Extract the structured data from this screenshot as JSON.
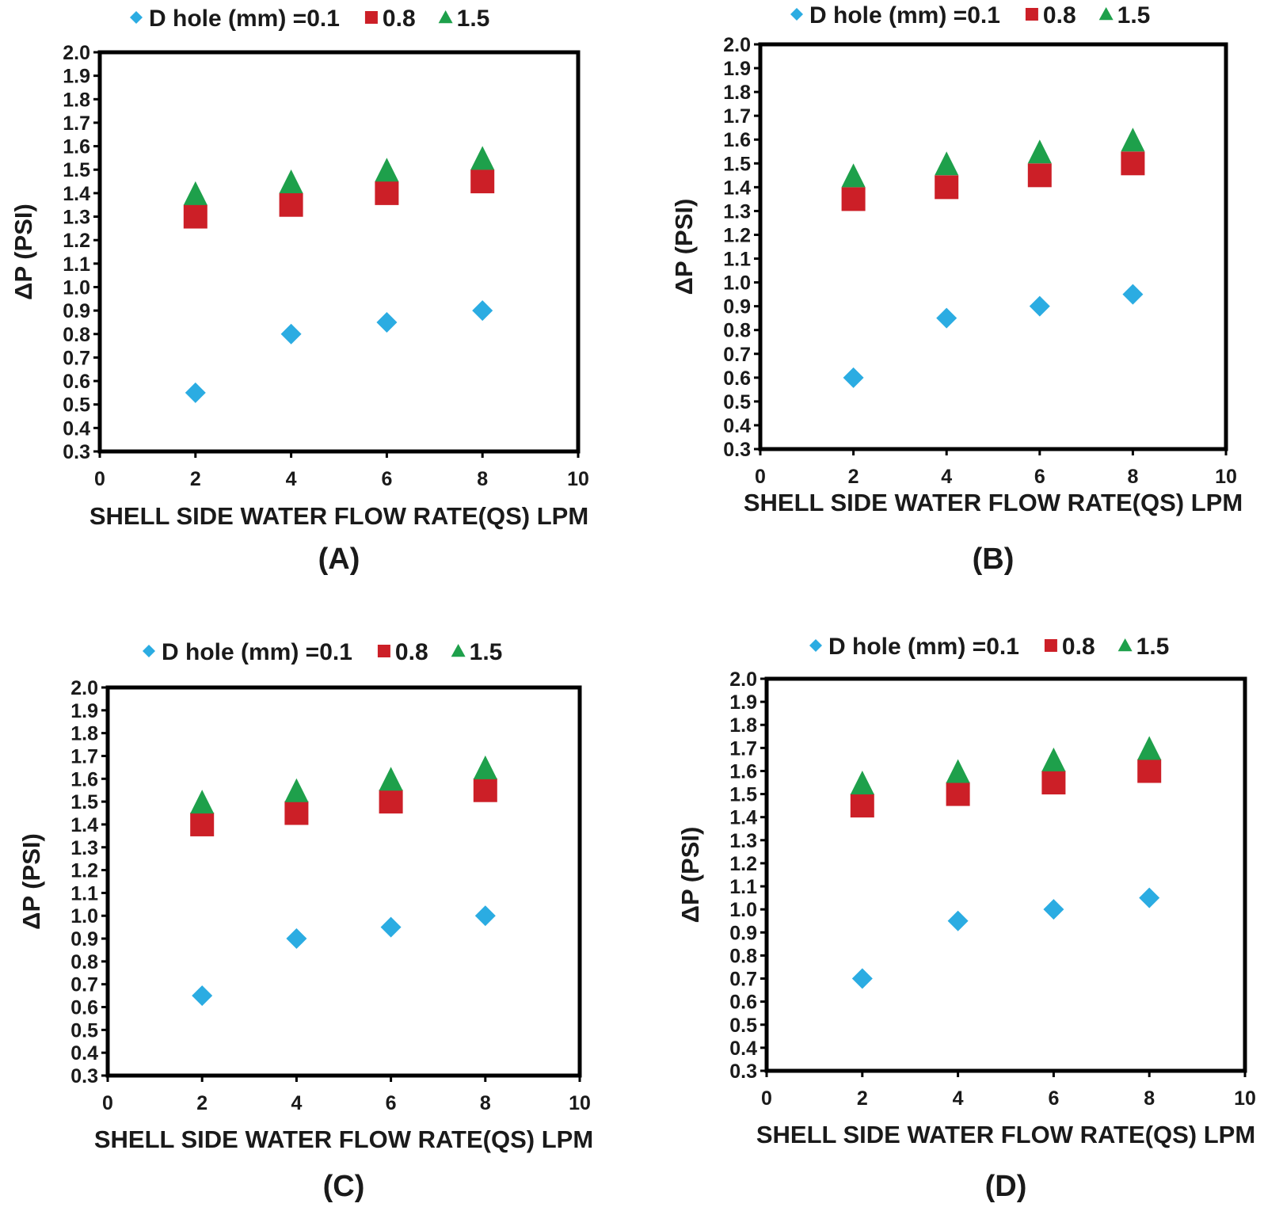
{
  "colors": {
    "d01": "#2bace2",
    "d08": "#cc1f27",
    "d15": "#1ea04b",
    "axis": "#000000",
    "text": "#1a1a1a"
  },
  "chart_data": [
    {
      "panel": "(A)",
      "type": "scatter",
      "xlabel": "SHELL SIDE WATER FLOW RATE(QS) LPM",
      "ylabel": "ΔP (PSI)",
      "xlim": [
        0,
        10
      ],
      "ylim": [
        0.3,
        2.0
      ],
      "xticks": [
        "0",
        "2",
        "4",
        "6",
        "8",
        "10"
      ],
      "yticks": [
        "0.3",
        "0.4",
        "0.5",
        "0.6",
        "0.7",
        "0.8",
        "0.9",
        "1.0",
        "1.1",
        "1.2",
        "1.3",
        "1.4",
        "1.5",
        "1.6",
        "1.7",
        "1.8",
        "1.9",
        "2.0"
      ],
      "legend": {
        "prefix": "D hole (mm) = ",
        "labels": [
          "0.1",
          "0.8",
          "1.5"
        ]
      },
      "x": [
        2,
        4,
        6,
        8
      ],
      "series": [
        {
          "name": "0.1",
          "marker": "diamond",
          "values": [
            0.55,
            0.8,
            0.85,
            0.9
          ]
        },
        {
          "name": "0.8",
          "marker": "square",
          "values": [
            1.3,
            1.35,
            1.4,
            1.45
          ]
        },
        {
          "name": "1.5",
          "marker": "triangle",
          "values": [
            1.4,
            1.45,
            1.5,
            1.55
          ]
        }
      ]
    },
    {
      "panel": "(B)",
      "type": "scatter",
      "xlabel": "SHELL SIDE WATER FLOW RATE(QS) LPM",
      "ylabel": "ΔP (PSI)",
      "xlim": [
        0,
        10
      ],
      "ylim": [
        0.3,
        2.0
      ],
      "xticks": [
        "0",
        "2",
        "4",
        "6",
        "8",
        "10"
      ],
      "yticks": [
        "0.3",
        "0.4",
        "0.5",
        "0.6",
        "0.7",
        "0.8",
        "0.9",
        "1.0",
        "1.1",
        "1.2",
        "1.3",
        "1.4",
        "1.5",
        "1.6",
        "1.7",
        "1.8",
        "1.9",
        "2.0"
      ],
      "legend": {
        "prefix": "D hole (mm) = ",
        "labels": [
          "0.1",
          "0.8",
          "1.5"
        ]
      },
      "x": [
        2,
        4,
        6,
        8
      ],
      "series": [
        {
          "name": "0.1",
          "marker": "diamond",
          "values": [
            0.6,
            0.85,
            0.9,
            0.95
          ]
        },
        {
          "name": "0.8",
          "marker": "square",
          "values": [
            1.35,
            1.4,
            1.45,
            1.5
          ]
        },
        {
          "name": "1.5",
          "marker": "triangle",
          "values": [
            1.45,
            1.5,
            1.55,
            1.6
          ]
        }
      ]
    },
    {
      "panel": "(C)",
      "type": "scatter",
      "xlabel": "SHELL SIDE WATER FLOW RATE(QS) LPM",
      "ylabel": "ΔP (PSI)",
      "xlim": [
        0,
        10
      ],
      "ylim": [
        0.3,
        2.0
      ],
      "xticks": [
        "0",
        "2",
        "4",
        "6",
        "8",
        "10"
      ],
      "yticks": [
        "0.3",
        "0.4",
        "0.5",
        "0.6",
        "0.7",
        "0.8",
        "0.9",
        "1.0",
        "1.1",
        "1.2",
        "1.3",
        "1.4",
        "1.5",
        "1.6",
        "1.7",
        "1.8",
        "1.9",
        "2.0"
      ],
      "legend": {
        "prefix": "D hole (mm) = ",
        "labels": [
          "0.1",
          "0.8",
          "1.5"
        ]
      },
      "x": [
        2,
        4,
        6,
        8
      ],
      "series": [
        {
          "name": "0.1",
          "marker": "diamond",
          "values": [
            0.65,
            0.9,
            0.95,
            1.0
          ]
        },
        {
          "name": "0.8",
          "marker": "square",
          "values": [
            1.4,
            1.45,
            1.5,
            1.55
          ]
        },
        {
          "name": "1.5",
          "marker": "triangle",
          "values": [
            1.5,
            1.55,
            1.6,
            1.65
          ]
        }
      ]
    },
    {
      "panel": "(D)",
      "type": "scatter",
      "xlabel": "SHELL SIDE WATER FLOW RATE(QS) LPM",
      "ylabel": "ΔP (PSI)",
      "xlim": [
        0,
        10
      ],
      "ylim": [
        0.3,
        2.0
      ],
      "xticks": [
        "0",
        "2",
        "4",
        "6",
        "8",
        "10"
      ],
      "yticks": [
        "0.3",
        "0.4",
        "0.5",
        "0.6",
        "0.7",
        "0.8",
        "0.9",
        "1.0",
        "1.1",
        "1.2",
        "1.3",
        "1.4",
        "1.5",
        "1.6",
        "1.7",
        "1.8",
        "1.9",
        "2.0"
      ],
      "legend": {
        "prefix": "D hole (mm) = ",
        "labels": [
          "0.1",
          "0.8",
          "1.5"
        ]
      },
      "x": [
        2,
        4,
        6,
        8
      ],
      "series": [
        {
          "name": "0.1",
          "marker": "diamond",
          "values": [
            0.7,
            0.95,
            1.0,
            1.05
          ]
        },
        {
          "name": "0.8",
          "marker": "square",
          "values": [
            1.45,
            1.5,
            1.55,
            1.6
          ]
        },
        {
          "name": "1.5",
          "marker": "triangle",
          "values": [
            1.55,
            1.6,
            1.65,
            1.7
          ]
        }
      ]
    }
  ]
}
